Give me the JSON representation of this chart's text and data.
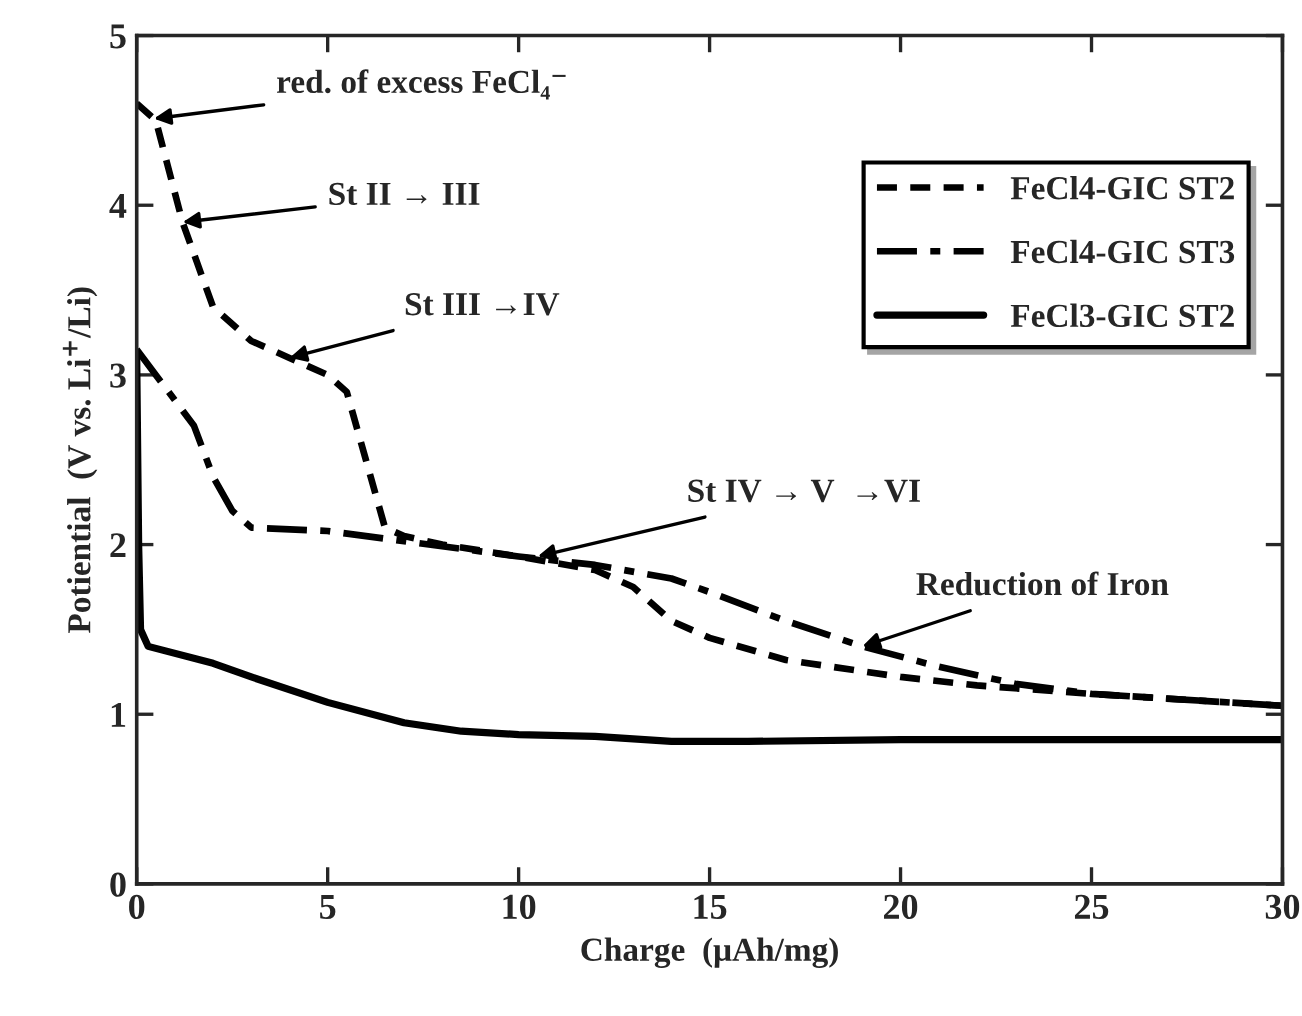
{
  "chart_data": {
    "type": "line",
    "xlabel": "Charge  (μAh/mg)",
    "ylabel": "Potiential  (V vs. Li$^{+}$/Li)",
    "xlim": [
      0,
      30
    ],
    "ylim": [
      0,
      5
    ],
    "xticks": [
      0,
      5,
      10,
      15,
      20,
      25,
      30
    ],
    "yticks": [
      0,
      1,
      2,
      3,
      4,
      5
    ],
    "grid": false,
    "legend": "top right",
    "series": [
      {
        "name": "FeCl4-GIC ST2",
        "color": "#000000",
        "line_style": "dashed",
        "x": [
          0,
          0.5,
          1.2,
          2,
          3,
          4,
          5,
          5.5,
          6,
          6.5,
          7,
          8,
          10,
          12,
          13,
          14,
          15,
          17,
          20,
          22,
          25,
          30
        ],
        "values": [
          4.6,
          4.5,
          3.9,
          3.4,
          3.2,
          3.1,
          3.0,
          2.9,
          2.5,
          2.1,
          2.05,
          2.0,
          1.93,
          1.85,
          1.75,
          1.55,
          1.45,
          1.32,
          1.22,
          1.17,
          1.12,
          1.05
        ]
      },
      {
        "name": "FeCl4-GIC ST3",
        "color": "#000000",
        "line_style": "dashdot",
        "x": [
          0,
          0.5,
          1.5,
          2,
          2.5,
          3,
          5,
          10,
          12,
          14,
          15,
          17,
          19,
          21,
          23,
          25,
          30
        ],
        "values": [
          3.15,
          3.0,
          2.7,
          2.4,
          2.2,
          2.1,
          2.08,
          1.93,
          1.88,
          1.8,
          1.72,
          1.55,
          1.4,
          1.28,
          1.18,
          1.12,
          1.05
        ]
      },
      {
        "name": "FeCl3-GIC ST2",
        "color": "#000000",
        "line_style": "solid",
        "x": [
          0,
          0.05,
          0.1,
          0.3,
          2,
          3,
          5,
          7,
          8.5,
          10,
          12,
          14,
          16,
          20,
          30
        ],
        "values": [
          3.1,
          2.0,
          1.5,
          1.4,
          1.3,
          1.22,
          1.07,
          0.95,
          0.9,
          0.88,
          0.87,
          0.84,
          0.84,
          0.85,
          0.85
        ]
      }
    ],
    "annotations": [
      {
        "text": "red. of excess FeCl₄⁻",
        "x": 0.45,
        "y": 4.51
      },
      {
        "text": "St II → III",
        "x": 1.2,
        "y": 3.9
      },
      {
        "text": "St III →IV",
        "x": 4,
        "y": 3.1
      },
      {
        "text": "St IV → V  →VI",
        "x": 10.5,
        "y": 1.93
      },
      {
        "text": "Reduction of Iron",
        "x": 19,
        "y": 1.4
      }
    ]
  }
}
